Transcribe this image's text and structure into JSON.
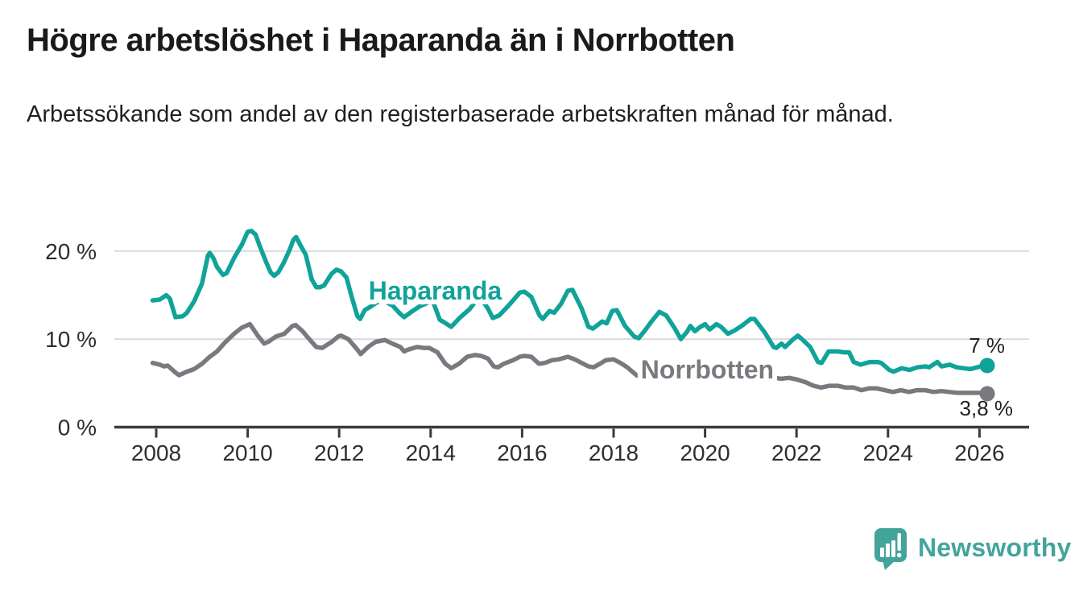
{
  "header": {
    "title": "Högre arbetslöshet i Haparanda än i Norrbotten",
    "subtitle": "Arbetssökande som andel av den registerbaserade arbetskraften månad för månad."
  },
  "footer": {
    "brand": "Newsworthy",
    "brand_color": "#43a49b",
    "logo_icon": "newsworthy-speech-bubble-bar-chart-icon"
  },
  "colors": {
    "haparanda": "#10a39a",
    "norrbotten": "#797a7f",
    "axis": "#3b3b3b",
    "grid": "#d9d9d9",
    "tick_label": "#2e2e2e",
    "end_label": "#222222"
  },
  "chart_data": {
    "type": "line",
    "title": "Högre arbetslöshet i Haparanda än i Norrbotten",
    "subtitle": "Arbetssökande som andel av den registerbaserade arbetskraften månad för månad.",
    "unit": "%",
    "x_axis": {
      "ticks": [
        2008,
        2010,
        2012,
        2014,
        2016,
        2018,
        2020,
        2022,
        2024,
        2026
      ]
    },
    "y_axis": {
      "ticks": [
        {
          "value": 0,
          "label": "0 %"
        },
        {
          "value": 10,
          "label": "10 %"
        },
        {
          "value": 20,
          "label": "20 %"
        }
      ],
      "min": 0,
      "max": 24
    },
    "grid": "horizontal-only",
    "legend": "inline-series-labels",
    "series": [
      {
        "name": "Haparanda",
        "color": "#10a39a",
        "end_label": "7 %",
        "end_label_side": "above",
        "label_pos": [
          2014.1,
          14.5
        ],
        "points": [
          [
            2007.92,
            14.4
          ],
          [
            2008.08,
            14.5
          ],
          [
            2008.22,
            15.0
          ],
          [
            2008.3,
            14.6
          ],
          [
            2008.42,
            12.5
          ],
          [
            2008.58,
            12.6
          ],
          [
            2008.67,
            13.0
          ],
          [
            2008.83,
            14.3
          ],
          [
            2009.0,
            16.3
          ],
          [
            2009.13,
            19.5
          ],
          [
            2009.17,
            19.8
          ],
          [
            2009.25,
            19.2
          ],
          [
            2009.33,
            18.2
          ],
          [
            2009.46,
            17.3
          ],
          [
            2009.54,
            17.5
          ],
          [
            2009.71,
            19.3
          ],
          [
            2009.87,
            20.7
          ],
          [
            2010.0,
            22.2
          ],
          [
            2010.08,
            22.3
          ],
          [
            2010.17,
            21.9
          ],
          [
            2010.27,
            20.5
          ],
          [
            2010.4,
            18.8
          ],
          [
            2010.5,
            17.6
          ],
          [
            2010.58,
            17.2
          ],
          [
            2010.67,
            17.6
          ],
          [
            2010.79,
            18.7
          ],
          [
            2010.92,
            20.2
          ],
          [
            2011.0,
            21.3
          ],
          [
            2011.06,
            21.6
          ],
          [
            2011.15,
            20.7
          ],
          [
            2011.27,
            19.6
          ],
          [
            2011.4,
            16.8
          ],
          [
            2011.5,
            15.9
          ],
          [
            2011.58,
            15.9
          ],
          [
            2011.67,
            16.1
          ],
          [
            2011.83,
            17.4
          ],
          [
            2011.94,
            17.9
          ],
          [
            2012.04,
            17.7
          ],
          [
            2012.16,
            17.0
          ],
          [
            2012.28,
            14.7
          ],
          [
            2012.4,
            12.6
          ],
          [
            2012.46,
            12.3
          ],
          [
            2012.56,
            13.3
          ],
          [
            2012.69,
            13.7
          ],
          [
            2012.83,
            14.2
          ],
          [
            2013.0,
            14.3
          ],
          [
            2013.17,
            13.8
          ],
          [
            2013.33,
            12.9
          ],
          [
            2013.42,
            12.5
          ],
          [
            2013.58,
            13.1
          ],
          [
            2013.75,
            13.7
          ],
          [
            2013.92,
            14.1
          ],
          [
            2014.05,
            14.3
          ],
          [
            2014.2,
            12.2
          ],
          [
            2014.3,
            11.9
          ],
          [
            2014.45,
            11.4
          ],
          [
            2014.63,
            12.4
          ],
          [
            2014.85,
            13.4
          ],
          [
            2015.0,
            14.4
          ],
          [
            2015.1,
            14.6
          ],
          [
            2015.25,
            13.5
          ],
          [
            2015.36,
            12.4
          ],
          [
            2015.5,
            12.7
          ],
          [
            2015.7,
            13.8
          ],
          [
            2015.95,
            15.3
          ],
          [
            2016.05,
            15.4
          ],
          [
            2016.2,
            14.8
          ],
          [
            2016.38,
            12.7
          ],
          [
            2016.45,
            12.3
          ],
          [
            2016.6,
            13.2
          ],
          [
            2016.7,
            13.0
          ],
          [
            2016.85,
            14.0
          ],
          [
            2017.0,
            15.5
          ],
          [
            2017.1,
            15.6
          ],
          [
            2017.3,
            13.5
          ],
          [
            2017.45,
            11.4
          ],
          [
            2017.55,
            11.2
          ],
          [
            2017.75,
            12.0
          ],
          [
            2017.85,
            11.8
          ],
          [
            2017.97,
            13.2
          ],
          [
            2018.07,
            13.3
          ],
          [
            2018.25,
            11.5
          ],
          [
            2018.45,
            10.3
          ],
          [
            2018.55,
            10.1
          ],
          [
            2018.7,
            11.1
          ],
          [
            2018.83,
            12.0
          ],
          [
            2019.0,
            13.1
          ],
          [
            2019.15,
            12.7
          ],
          [
            2019.33,
            11.3
          ],
          [
            2019.47,
            10.0
          ],
          [
            2019.6,
            10.8
          ],
          [
            2019.68,
            11.5
          ],
          [
            2019.78,
            10.9
          ],
          [
            2019.87,
            11.3
          ],
          [
            2020.0,
            11.7
          ],
          [
            2020.1,
            11.1
          ],
          [
            2020.25,
            11.7
          ],
          [
            2020.35,
            11.4
          ],
          [
            2020.5,
            10.6
          ],
          [
            2020.65,
            11.0
          ],
          [
            2020.8,
            11.5
          ],
          [
            2021.0,
            12.3
          ],
          [
            2021.08,
            12.3
          ],
          [
            2021.3,
            10.8
          ],
          [
            2021.5,
            9.1
          ],
          [
            2021.56,
            9.0
          ],
          [
            2021.67,
            9.5
          ],
          [
            2021.75,
            9.1
          ],
          [
            2021.93,
            10.0
          ],
          [
            2022.03,
            10.4
          ],
          [
            2022.12,
            10.0
          ],
          [
            2022.3,
            9.1
          ],
          [
            2022.47,
            7.4
          ],
          [
            2022.55,
            7.3
          ],
          [
            2022.7,
            8.6
          ],
          [
            2022.9,
            8.6
          ],
          [
            2023.05,
            8.5
          ],
          [
            2023.15,
            8.5
          ],
          [
            2023.25,
            7.4
          ],
          [
            2023.4,
            7.1
          ],
          [
            2023.6,
            7.4
          ],
          [
            2023.77,
            7.4
          ],
          [
            2023.85,
            7.3
          ],
          [
            2024.03,
            6.5
          ],
          [
            2024.12,
            6.3
          ],
          [
            2024.3,
            6.7
          ],
          [
            2024.47,
            6.5
          ],
          [
            2024.64,
            6.8
          ],
          [
            2024.82,
            6.9
          ],
          [
            2024.9,
            6.8
          ],
          [
            2025.08,
            7.4
          ],
          [
            2025.17,
            6.9
          ],
          [
            2025.35,
            7.1
          ],
          [
            2025.5,
            6.8
          ],
          [
            2025.65,
            6.7
          ],
          [
            2025.8,
            6.6
          ],
          [
            2025.95,
            6.8
          ],
          [
            2026.08,
            7.0
          ],
          [
            2026.17,
            7.0
          ]
        ]
      },
      {
        "name": "Norrbotten",
        "color": "#797a7f",
        "end_label": "3,8 %",
        "end_label_side": "below",
        "label_pos": [
          2020.05,
          5.55
        ],
        "points": [
          [
            2007.92,
            7.3
          ],
          [
            2008.08,
            7.1
          ],
          [
            2008.17,
            6.9
          ],
          [
            2008.25,
            7.0
          ],
          [
            2008.42,
            6.2
          ],
          [
            2008.5,
            5.9
          ],
          [
            2008.67,
            6.3
          ],
          [
            2008.83,
            6.6
          ],
          [
            2009.0,
            7.2
          ],
          [
            2009.17,
            8.0
          ],
          [
            2009.33,
            8.6
          ],
          [
            2009.5,
            9.6
          ],
          [
            2009.7,
            10.6
          ],
          [
            2009.87,
            11.3
          ],
          [
            2010.0,
            11.6
          ],
          [
            2010.05,
            11.7
          ],
          [
            2010.22,
            10.4
          ],
          [
            2010.36,
            9.5
          ],
          [
            2010.45,
            9.7
          ],
          [
            2010.62,
            10.3
          ],
          [
            2010.8,
            10.6
          ],
          [
            2010.98,
            11.5
          ],
          [
            2011.05,
            11.6
          ],
          [
            2011.2,
            10.9
          ],
          [
            2011.33,
            10.1
          ],
          [
            2011.5,
            9.1
          ],
          [
            2011.63,
            9.0
          ],
          [
            2011.84,
            9.7
          ],
          [
            2011.98,
            10.3
          ],
          [
            2012.04,
            10.4
          ],
          [
            2012.2,
            10.0
          ],
          [
            2012.4,
            8.8
          ],
          [
            2012.47,
            8.3
          ],
          [
            2012.63,
            9.1
          ],
          [
            2012.8,
            9.7
          ],
          [
            2013.0,
            9.9
          ],
          [
            2013.16,
            9.5
          ],
          [
            2013.34,
            9.1
          ],
          [
            2013.42,
            8.6
          ],
          [
            2013.5,
            8.8
          ],
          [
            2013.7,
            9.1
          ],
          [
            2013.86,
            9.0
          ],
          [
            2013.97,
            9.0
          ],
          [
            2014.15,
            8.5
          ],
          [
            2014.32,
            7.2
          ],
          [
            2014.45,
            6.7
          ],
          [
            2014.62,
            7.2
          ],
          [
            2014.8,
            8.0
          ],
          [
            2014.97,
            8.2
          ],
          [
            2015.1,
            8.1
          ],
          [
            2015.25,
            7.8
          ],
          [
            2015.38,
            6.9
          ],
          [
            2015.47,
            6.8
          ],
          [
            2015.6,
            7.2
          ],
          [
            2015.8,
            7.6
          ],
          [
            2015.95,
            8.0
          ],
          [
            2016.05,
            8.1
          ],
          [
            2016.2,
            8.0
          ],
          [
            2016.37,
            7.2
          ],
          [
            2016.5,
            7.3
          ],
          [
            2016.65,
            7.6
          ],
          [
            2016.8,
            7.7
          ],
          [
            2017.0,
            8.0
          ],
          [
            2017.15,
            7.7
          ],
          [
            2017.3,
            7.3
          ],
          [
            2017.45,
            6.9
          ],
          [
            2017.56,
            6.8
          ],
          [
            2017.7,
            7.2
          ],
          [
            2017.83,
            7.6
          ],
          [
            2018.0,
            7.7
          ],
          [
            2018.15,
            7.3
          ],
          [
            2018.3,
            6.8
          ],
          [
            2018.5,
            5.9
          ],
          [
            2018.6,
            5.7
          ],
          [
            2018.8,
            6.0
          ],
          [
            2019.0,
            6.4
          ],
          [
            2019.2,
            6.0
          ],
          [
            2019.4,
            5.5
          ],
          [
            2019.6,
            5.4
          ],
          [
            2019.8,
            5.7
          ],
          [
            2020.0,
            5.9
          ],
          [
            2020.3,
            6.6
          ],
          [
            2020.5,
            6.8
          ],
          [
            2020.7,
            6.6
          ],
          [
            2021.0,
            6.5
          ],
          [
            2021.2,
            6.1
          ],
          [
            2021.4,
            5.8
          ],
          [
            2021.55,
            5.6
          ],
          [
            2021.66,
            5.5
          ],
          [
            2021.84,
            5.6
          ],
          [
            2022.02,
            5.4
          ],
          [
            2022.2,
            5.1
          ],
          [
            2022.37,
            4.7
          ],
          [
            2022.54,
            4.5
          ],
          [
            2022.72,
            4.7
          ],
          [
            2022.9,
            4.7
          ],
          [
            2023.07,
            4.5
          ],
          [
            2023.25,
            4.5
          ],
          [
            2023.42,
            4.2
          ],
          [
            2023.58,
            4.4
          ],
          [
            2023.76,
            4.4
          ],
          [
            2023.93,
            4.2
          ],
          [
            2024.11,
            4.0
          ],
          [
            2024.28,
            4.2
          ],
          [
            2024.46,
            4.0
          ],
          [
            2024.63,
            4.2
          ],
          [
            2024.81,
            4.2
          ],
          [
            2025.0,
            4.0
          ],
          [
            2025.16,
            4.1
          ],
          [
            2025.34,
            4.0
          ],
          [
            2025.51,
            3.9
          ],
          [
            2025.7,
            3.9
          ],
          [
            2025.9,
            3.9
          ],
          [
            2026.08,
            3.9
          ],
          [
            2026.17,
            3.8
          ]
        ]
      }
    ]
  }
}
